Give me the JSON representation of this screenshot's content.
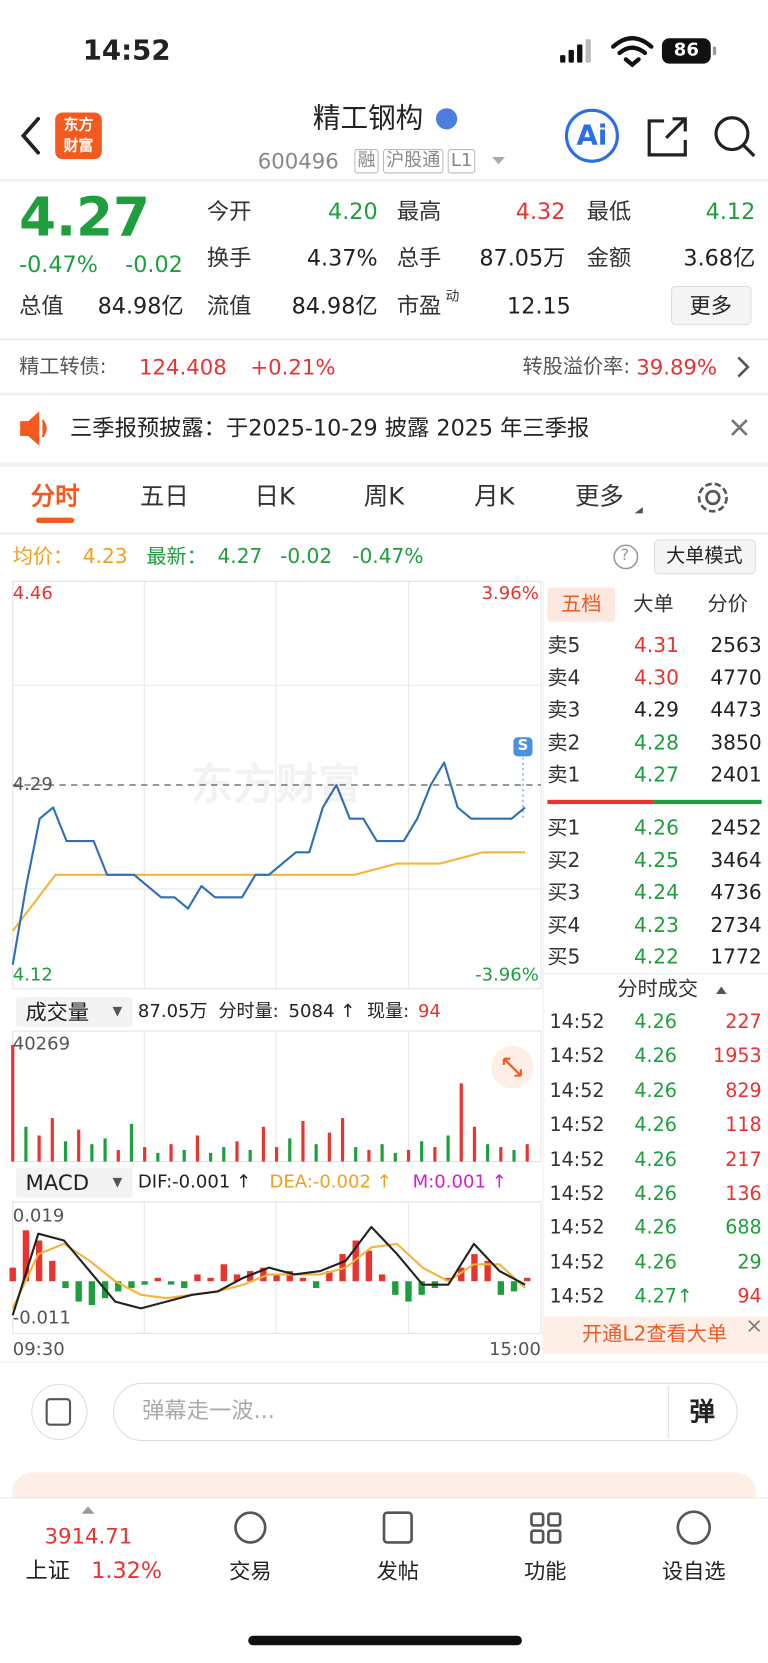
{
  "status_bar": {
    "time": "14:52",
    "battery": "86"
  },
  "header": {
    "logo": [
      "东方",
      "财富"
    ],
    "title": "精工钢构",
    "code": "600496",
    "tags": [
      "融",
      "沪股通",
      "L1"
    ],
    "ai": "Ai"
  },
  "quote": {
    "price": "4.27",
    "change_pct": "-0.47%",
    "change": "-0.02",
    "color": "#1e9e3c",
    "fields": [
      {
        "label": "今开",
        "value": "4.20",
        "color": "#1e9e3c"
      },
      {
        "label": "最高",
        "value": "4.32",
        "color": "#e8332f"
      },
      {
        "label": "最低",
        "value": "4.12",
        "color": "#1e9e3c"
      },
      {
        "label": "换手",
        "value": "4.37%"
      },
      {
        "label": "总手",
        "value": "87.05万"
      },
      {
        "label": "金额",
        "value": "3.68亿"
      },
      {
        "label": "总值",
        "value": "84.98亿"
      },
      {
        "label": "流值",
        "value": "84.98亿"
      },
      {
        "label": "市盈",
        "sup": "动",
        "value": "12.15"
      }
    ],
    "more": "更多"
  },
  "bond": {
    "name": "精工转债:",
    "price": "124.408",
    "change": "+0.21%",
    "premium_label": "转股溢价率:",
    "premium": "39.89%"
  },
  "notice": "三季报预披露：于2025-10-29 披露 2025 年三季报",
  "tabs": [
    "分时",
    "五日",
    "日K",
    "周K",
    "月K",
    "更多"
  ],
  "summary": {
    "avg_label": "均价：",
    "avg": "4.23",
    "latest_label": "最新：",
    "latest": "4.27",
    "change": "-0.02",
    "change_pct": "-0.47%",
    "mode": "大单模式"
  },
  "intraday": {
    "watermark": "东方财富",
    "ylim": [
      4.12,
      4.46
    ],
    "yticks": [
      4.12,
      4.29,
      4.46
    ],
    "prev_close": 4.29,
    "pct_ticks": [
      {
        "value": -3.96,
        "label": "-3.96%"
      },
      {
        "value": 3.96,
        "label": "3.96%"
      }
    ],
    "price": {
      "color": "#2f6fb5",
      "values": [
        4.13,
        4.2,
        4.26,
        4.27,
        4.24,
        4.24,
        4.24,
        4.21,
        4.21,
        4.21,
        4.2,
        4.19,
        4.19,
        4.18,
        4.2,
        4.19,
        4.19,
        4.19,
        4.21,
        4.21,
        4.22,
        4.23,
        4.23,
        4.27,
        4.29,
        4.26,
        4.26,
        4.24,
        4.24,
        4.24,
        4.26,
        4.29,
        4.31,
        4.27,
        4.26,
        4.26,
        4.26,
        4.26,
        4.27
      ]
    },
    "average": {
      "color": "#f5b43a",
      "values": [
        4.16,
        4.21,
        4.21,
        4.21,
        4.21,
        4.21,
        4.21,
        4.21,
        4.21,
        4.22,
        4.22,
        4.23,
        4.23
      ]
    },
    "x_labels": [
      "09:30",
      "15:00"
    ]
  },
  "volume": {
    "label": "成交量",
    "total": "87.05万",
    "tick_label": "分时量:",
    "tick_vol": "5084 ↑",
    "now_label": "现量:",
    "now": "94",
    "ylim": [
      0,
      40269
    ],
    "yticks": [
      40269
    ],
    "series": [
      {
        "color": "#e8332f",
        "values": [
          40269,
          null,
          9000,
          15000,
          null,
          11000,
          null,
          null,
          4000,
          null,
          5000,
          null,
          6000,
          null,
          9000,
          null,
          null,
          7000,
          null,
          12000,
          5000,
          null,
          14000,
          null,
          10000,
          15000,
          null,
          4000,
          null,
          null,
          4000,
          null,
          5000,
          null,
          27000,
          12000,
          null,
          5000,
          null,
          6000
        ]
      },
      {
        "color": "#1e9e3c",
        "values": [
          null,
          12000,
          null,
          null,
          7000,
          null,
          6000,
          8000,
          null,
          13000,
          null,
          3000,
          null,
          4000,
          null,
          3000,
          5000,
          null,
          4000,
          null,
          null,
          8000,
          null,
          6000,
          null,
          null,
          5000,
          null,
          6000,
          3000,
          null,
          7000,
          null,
          9000,
          null,
          null,
          6000,
          null,
          4000,
          null
        ]
      }
    ]
  },
  "macd": {
    "label": "MACD",
    "dif_label": "DIF:-0.001 ↑",
    "dea_label": "DEA:-0.002 ↑",
    "m_label": "M:0.001 ↑",
    "ylim": [
      -0.011,
      0.019
    ],
    "yticks": [
      -0.011,
      0.019
    ],
    "hist": {
      "up_color": "#e8332f",
      "down_color": "#1e9e3c",
      "values": [
        0.004,
        0.015,
        0.012,
        0.006,
        -0.002,
        -0.006,
        -0.007,
        -0.005,
        -0.003,
        -0.002,
        -0.001,
        0.001,
        -0.001,
        -0.002,
        0.002,
        0.001,
        0.005,
        0.002,
        0.003,
        0.004,
        0.002,
        0.003,
        0.001,
        -0.002,
        0.003,
        0.008,
        0.012,
        0.009,
        0.002,
        -0.004,
        -0.006,
        -0.004,
        -0.002,
        0.001,
        0.004,
        0.008,
        0.006,
        -0.004,
        -0.003,
        0.001
      ]
    },
    "dif": {
      "color": "#222222",
      "values": [
        -0.01,
        0.014,
        0.012,
        0.003,
        -0.006,
        -0.008,
        -0.006,
        -0.004,
        -0.003,
        0.001,
        0.004,
        0.002,
        0.003,
        0.006,
        0.016,
        0.008,
        -0.001,
        -0.001,
        0.011,
        0.003,
        -0.001
      ]
    },
    "dea": {
      "color": "#f5b43a",
      "values": [
        -0.008,
        0.008,
        0.011,
        0.006,
        0.0,
        -0.004,
        -0.005,
        -0.004,
        -0.003,
        -0.001,
        0.002,
        0.002,
        0.002,
        0.004,
        0.01,
        0.011,
        0.004,
        0.0,
        0.005,
        0.005,
        -0.002
      ]
    }
  },
  "order_book": {
    "tabs": [
      "五档",
      "大单",
      "分价"
    ],
    "asks": [
      {
        "label": "卖5",
        "price": "4.31",
        "volume": "2563"
      },
      {
        "label": "卖4",
        "price": "4.30",
        "volume": "4770"
      },
      {
        "label": "卖3",
        "price": "4.29",
        "volume": "4473"
      },
      {
        "label": "卖2",
        "price": "4.28",
        "volume": "3850"
      },
      {
        "label": "卖1",
        "price": "4.27",
        "volume": "2401"
      }
    ],
    "bids": [
      {
        "label": "买1",
        "price": "4.26",
        "volume": "2452"
      },
      {
        "label": "买2",
        "price": "4.25",
        "volume": "3464"
      },
      {
        "label": "买3",
        "price": "4.24",
        "volume": "4736"
      },
      {
        "label": "买4",
        "price": "4.23",
        "volume": "2734"
      },
      {
        "label": "买5",
        "price": "4.22",
        "volume": "1772"
      }
    ]
  },
  "trades": {
    "title": "分时成交",
    "rows": [
      {
        "time": "14:52",
        "price": "4.26",
        "volume": "227",
        "color": "#e8332f"
      },
      {
        "time": "14:52",
        "price": "4.26",
        "volume": "1953",
        "color": "#e8332f"
      },
      {
        "time": "14:52",
        "price": "4.26",
        "volume": "829",
        "color": "#e8332f"
      },
      {
        "time": "14:52",
        "price": "4.26",
        "volume": "118",
        "color": "#e8332f"
      },
      {
        "time": "14:52",
        "price": "4.26",
        "volume": "217",
        "color": "#e8332f"
      },
      {
        "time": "14:52",
        "price": "4.26",
        "volume": "136",
        "color": "#e8332f"
      },
      {
        "time": "14:52",
        "price": "4.26",
        "volume": "688",
        "color": "#1e9e3c"
      },
      {
        "time": "14:52",
        "price": "4.26",
        "volume": "29",
        "color": "#1e9e3c"
      },
      {
        "time": "14:52",
        "price": "4.27↑",
        "volume": "94",
        "color": "#e8332f"
      }
    ],
    "banner": "开通L2查看大单"
  },
  "comment": {
    "placeholder": "弹幕走一波...",
    "button": "弹"
  },
  "nav": {
    "index_value": "3914.71",
    "index_name": "上证",
    "index_change": "1.32%",
    "items": [
      "交易",
      "发帖",
      "功能",
      "设自选"
    ]
  }
}
